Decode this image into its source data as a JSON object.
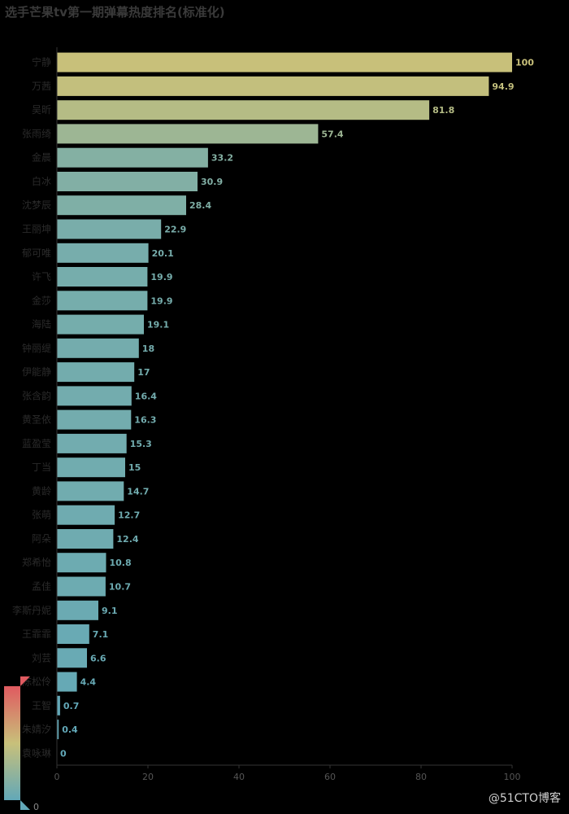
{
  "title": "选手芒果tv第一期弹幕热度排名(标准化)",
  "watermark": "@51CTO博客",
  "chart_data": {
    "type": "bar",
    "orientation": "horizontal",
    "title": "选手芒果tv第一期弹幕热度排名(标准化)",
    "categories": [
      "宁静",
      "万茜",
      "吴昕",
      "张雨绮",
      "金晨",
      "白冰",
      "沈梦辰",
      "王丽坤",
      "郁可唯",
      "许飞",
      "金莎",
      "海陆",
      "钟丽缇",
      "伊能静",
      "张含韵",
      "黄圣依",
      "蓝盈莹",
      "丁当",
      "黄龄",
      "张萌",
      "阿朵",
      "郑希怡",
      "孟佳",
      "李斯丹妮",
      "王霏霏",
      "刘芸",
      "陈松伶",
      "王智",
      "朱婧汐",
      "袁咏琳"
    ],
    "values": [
      100,
      94.9,
      81.8,
      57.4,
      33.2,
      30.9,
      28.4,
      22.9,
      20.1,
      19.9,
      19.9,
      19.1,
      18,
      17,
      16.4,
      16.3,
      15.3,
      15,
      14.7,
      12.7,
      12.4,
      10.8,
      10.7,
      9.1,
      7.1,
      6.6,
      4.4,
      0.7,
      0.4,
      0
    ],
    "xlim": [
      0,
      100
    ],
    "xticks": [
      0,
      20,
      40,
      60,
      80,
      100
    ],
    "grid": false,
    "color_scale": {
      "min_label": "0",
      "colors": [
        "#62a8b8",
        "#c8c07a",
        "#e05a60"
      ]
    }
  }
}
